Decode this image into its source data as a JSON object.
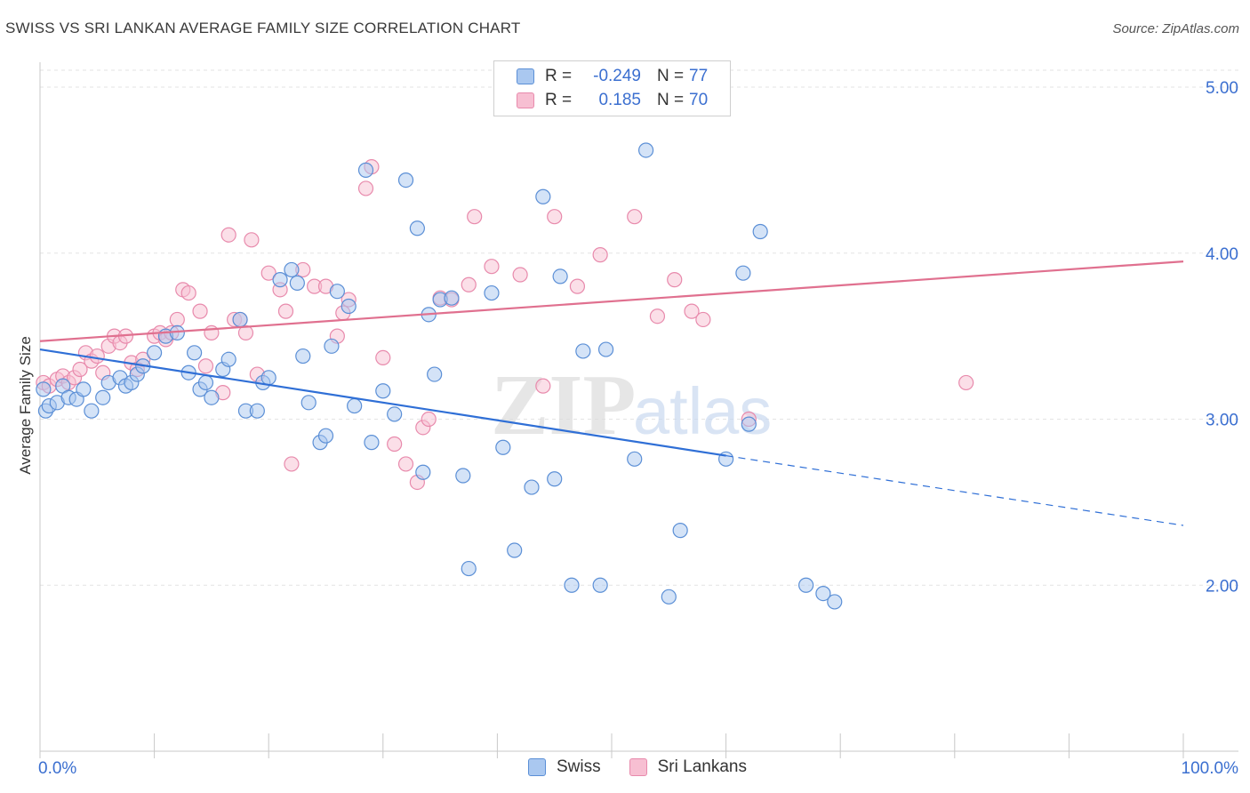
{
  "header": {
    "title": "SWISS VS SRI LANKAN AVERAGE FAMILY SIZE CORRELATION CHART",
    "source": "Source: ZipAtlas.com"
  },
  "legend": {
    "rows": [
      {
        "r_label": "R =",
        "r_value": "-0.249",
        "n_label": "N =",
        "n_value": "77"
      },
      {
        "r_label": "R =",
        "r_value": "0.185",
        "n_label": "N =",
        "n_value": "70"
      }
    ],
    "items": [
      {
        "label": "Swiss"
      },
      {
        "label": "Sri Lankans"
      }
    ]
  },
  "watermark": {
    "zip": "ZIP",
    "atlas": "atlas"
  },
  "colors": {
    "swiss_fill": "#aac8f0",
    "swiss_stroke": "#5b8fd6",
    "swiss_line": "#2f6fd6",
    "sri_fill": "#f7bfd2",
    "sri_stroke": "#e88aac",
    "sri_line": "#e0708f",
    "axis_text": "#3b6fd0",
    "grid": "#e3e3e3"
  },
  "chart_data": {
    "type": "scatter",
    "title": "SWISS VS SRI LANKAN AVERAGE FAMILY SIZE CORRELATION CHART",
    "xlabel": "",
    "ylabel": "Average Family Size",
    "xlim": [
      0,
      100
    ],
    "ylim": [
      1.0,
      5.15
    ],
    "x_tick_labels": [
      "0.0%",
      "100.0%"
    ],
    "y_ticks": [
      2.0,
      3.0,
      4.0,
      5.0
    ],
    "y_tick_labels": [
      "2.00",
      "3.00",
      "4.00",
      "5.00"
    ],
    "grid": "horizontal dashed",
    "legend_position": "top-center",
    "series": [
      {
        "name": "Swiss",
        "r": -0.249,
        "n": 77,
        "trend": {
          "x": [
            0,
            60
          ],
          "y": [
            3.42,
            2.78
          ],
          "dashed_to": [
            100,
            2.36
          ]
        },
        "points": [
          [
            0.5,
            3.05
          ],
          [
            0.8,
            3.08
          ],
          [
            1.5,
            3.1
          ],
          [
            2.0,
            3.2
          ],
          [
            2.5,
            3.13
          ],
          [
            3.2,
            3.12
          ],
          [
            3.8,
            3.18
          ],
          [
            4.5,
            3.05
          ],
          [
            5.5,
            3.13
          ],
          [
            6.0,
            3.22
          ],
          [
            7.0,
            3.25
          ],
          [
            7.5,
            3.2
          ],
          [
            8.0,
            3.22
          ],
          [
            8.5,
            3.27
          ],
          [
            9.0,
            3.32
          ],
          [
            10.0,
            3.4
          ],
          [
            11.0,
            3.5
          ],
          [
            12.0,
            3.52
          ],
          [
            13.0,
            3.28
          ],
          [
            13.5,
            3.4
          ],
          [
            14.0,
            3.18
          ],
          [
            14.5,
            3.22
          ],
          [
            15.0,
            3.13
          ],
          [
            16.0,
            3.3
          ],
          [
            16.5,
            3.36
          ],
          [
            17.5,
            3.6
          ],
          [
            18.0,
            3.05
          ],
          [
            19.0,
            3.05
          ],
          [
            19.5,
            3.22
          ],
          [
            20.0,
            3.25
          ],
          [
            21.0,
            3.84
          ],
          [
            22.0,
            3.9
          ],
          [
            22.5,
            3.82
          ],
          [
            23.0,
            3.38
          ],
          [
            23.5,
            3.1
          ],
          [
            24.5,
            2.86
          ],
          [
            25.0,
            2.9
          ],
          [
            25.5,
            3.44
          ],
          [
            26.0,
            3.77
          ],
          [
            27.0,
            3.68
          ],
          [
            27.5,
            3.08
          ],
          [
            28.5,
            4.5
          ],
          [
            29.0,
            2.86
          ],
          [
            30.0,
            3.17
          ],
          [
            31.0,
            3.03
          ],
          [
            32.0,
            4.44
          ],
          [
            33.0,
            4.15
          ],
          [
            33.5,
            2.68
          ],
          [
            34.0,
            3.63
          ],
          [
            34.5,
            3.27
          ],
          [
            35.0,
            3.72
          ],
          [
            36.0,
            3.73
          ],
          [
            37.0,
            2.66
          ],
          [
            37.5,
            2.1
          ],
          [
            39.5,
            3.76
          ],
          [
            40.5,
            2.83
          ],
          [
            41.5,
            2.21
          ],
          [
            43.0,
            2.59
          ],
          [
            44.0,
            4.34
          ],
          [
            45.0,
            2.64
          ],
          [
            45.5,
            3.86
          ],
          [
            46.5,
            2.0
          ],
          [
            47.5,
            3.41
          ],
          [
            49.0,
            2.0
          ],
          [
            49.5,
            3.42
          ],
          [
            52.0,
            2.76
          ],
          [
            53.0,
            4.62
          ],
          [
            55.0,
            1.93
          ],
          [
            56.0,
            2.33
          ],
          [
            60.0,
            2.76
          ],
          [
            61.5,
            3.88
          ],
          [
            62.0,
            2.97
          ],
          [
            63.0,
            4.13
          ],
          [
            67.0,
            2.0
          ],
          [
            68.5,
            1.95
          ],
          [
            69.5,
            1.9
          ],
          [
            0.3,
            3.18
          ]
        ]
      },
      {
        "name": "Sri Lankans",
        "r": 0.185,
        "n": 70,
        "trend": {
          "x": [
            0,
            100
          ],
          "y": [
            3.47,
            3.95
          ]
        },
        "points": [
          [
            0.3,
            3.22
          ],
          [
            0.8,
            3.2
          ],
          [
            1.5,
            3.24
          ],
          [
            2.0,
            3.26
          ],
          [
            2.5,
            3.22
          ],
          [
            3.0,
            3.25
          ],
          [
            3.5,
            3.3
          ],
          [
            4.0,
            3.4
          ],
          [
            4.5,
            3.35
          ],
          [
            5.0,
            3.38
          ],
          [
            5.5,
            3.28
          ],
          [
            6.0,
            3.44
          ],
          [
            6.5,
            3.5
          ],
          [
            7.0,
            3.46
          ],
          [
            7.5,
            3.5
          ],
          [
            8.0,
            3.34
          ],
          [
            8.5,
            3.3
          ],
          [
            9.0,
            3.36
          ],
          [
            10.0,
            3.5
          ],
          [
            10.5,
            3.52
          ],
          [
            11.0,
            3.48
          ],
          [
            11.5,
            3.52
          ],
          [
            12.0,
            3.6
          ],
          [
            12.5,
            3.78
          ],
          [
            13.0,
            3.76
          ],
          [
            14.0,
            3.65
          ],
          [
            14.5,
            3.32
          ],
          [
            15.0,
            3.52
          ],
          [
            16.0,
            3.16
          ],
          [
            16.5,
            4.11
          ],
          [
            17.0,
            3.6
          ],
          [
            17.5,
            3.6
          ],
          [
            18.0,
            3.52
          ],
          [
            18.5,
            4.08
          ],
          [
            19.0,
            3.27
          ],
          [
            20.0,
            3.88
          ],
          [
            21.0,
            3.78
          ],
          [
            21.5,
            3.65
          ],
          [
            22.0,
            2.73
          ],
          [
            23.0,
            3.9
          ],
          [
            24.0,
            3.8
          ],
          [
            25.0,
            3.8
          ],
          [
            26.0,
            3.5
          ],
          [
            26.5,
            3.64
          ],
          [
            27.0,
            3.72
          ],
          [
            28.5,
            4.39
          ],
          [
            29.0,
            4.52
          ],
          [
            30.0,
            3.37
          ],
          [
            31.0,
            2.85
          ],
          [
            32.0,
            2.73
          ],
          [
            33.0,
            2.62
          ],
          [
            33.5,
            2.95
          ],
          [
            34.0,
            3.0
          ],
          [
            35.0,
            3.73
          ],
          [
            36.0,
            3.72
          ],
          [
            37.5,
            3.81
          ],
          [
            38.0,
            4.22
          ],
          [
            39.5,
            3.92
          ],
          [
            42.0,
            3.87
          ],
          [
            44.0,
            3.2
          ],
          [
            45.0,
            4.22
          ],
          [
            47.0,
            3.8
          ],
          [
            49.0,
            3.99
          ],
          [
            52.0,
            4.22
          ],
          [
            54.0,
            3.62
          ],
          [
            55.5,
            3.84
          ],
          [
            57.0,
            3.65
          ],
          [
            58.0,
            3.6
          ],
          [
            62.0,
            3.0
          ],
          [
            81.0,
            3.22
          ]
        ]
      }
    ]
  }
}
